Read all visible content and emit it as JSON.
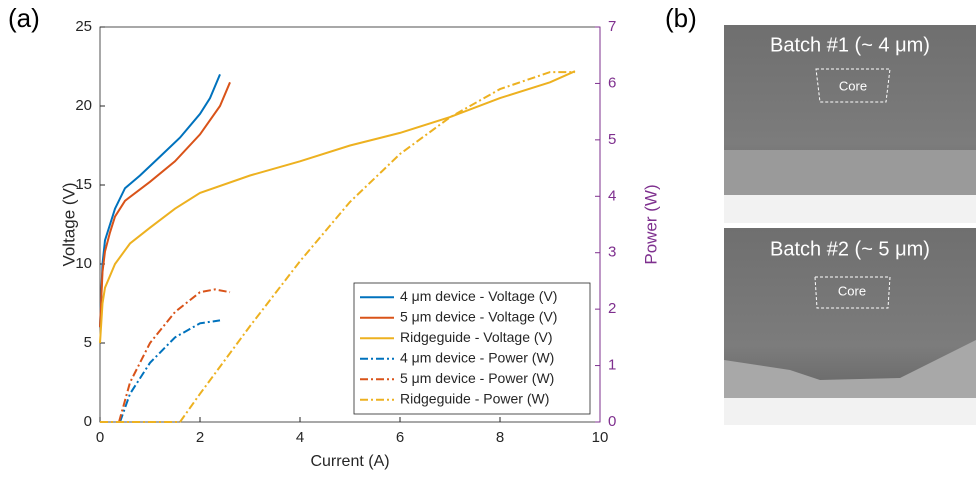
{
  "panel_labels": [
    "(a)",
    "(b)"
  ],
  "chart_data": {
    "type": "line",
    "xlabel": "Current (A)",
    "ylabel": "Voltage (V)",
    "y2label": "Power (W)",
    "xlim": [
      0,
      10
    ],
    "xticks": [
      0,
      2,
      4,
      6,
      8,
      10
    ],
    "ylim": [
      0,
      25
    ],
    "yticks": [
      0,
      5,
      10,
      15,
      20,
      25
    ],
    "y2lim": [
      0,
      7
    ],
    "y2ticks": [
      0,
      1,
      2,
      3,
      4,
      5,
      6,
      7
    ],
    "y2color": "#7e2f8e",
    "legend": "lower right",
    "series": [
      {
        "name": "4 μm device - Voltage (V)",
        "color": "#0072bd",
        "style": "solid",
        "x": [
          0,
          0.05,
          0.1,
          0.2,
          0.3,
          0.5,
          0.8,
          1.2,
          1.6,
          2.0,
          2.2,
          2.4
        ],
        "values": [
          6,
          10,
          11.5,
          12.5,
          13.5,
          14.8,
          15.6,
          16.8,
          18,
          19.5,
          20.5,
          22
        ]
      },
      {
        "name": "5 μm device - Voltage (V)",
        "color": "#d95319",
        "style": "solid",
        "x": [
          0,
          0.05,
          0.1,
          0.2,
          0.3,
          0.5,
          1,
          1.5,
          2,
          2.4,
          2.6
        ],
        "values": [
          6,
          9.5,
          10.8,
          12,
          13,
          14,
          15.2,
          16.5,
          18.2,
          20,
          21.5
        ]
      },
      {
        "name": "Ridgeguide - Voltage (V)",
        "color": "#edb120",
        "style": "solid",
        "x": [
          0,
          0.05,
          0.1,
          0.3,
          0.6,
          1,
          1.5,
          2,
          3,
          4,
          5,
          6,
          7,
          8,
          9,
          9.5
        ],
        "values": [
          5,
          7.5,
          8.5,
          10,
          11.3,
          12.3,
          13.5,
          14.5,
          15.6,
          16.5,
          17.5,
          18.3,
          19.3,
          20.5,
          21.5,
          22.2
        ]
      },
      {
        "name": "4 μm device - Power (W)",
        "color": "#0072bd",
        "style": "dashdot",
        "axis": "y2",
        "x": [
          0.4,
          0.6,
          1,
          1.5,
          2,
          2.4
        ],
        "values": [
          0,
          0.5,
          1.05,
          1.5,
          1.75,
          1.8
        ]
      },
      {
        "name": "5 μm device - Power (W)",
        "color": "#d95319",
        "style": "dashdot",
        "axis": "y2",
        "x": [
          0.38,
          0.6,
          1,
          1.5,
          2,
          2.3,
          2.6
        ],
        "values": [
          0,
          0.7,
          1.4,
          1.95,
          2.3,
          2.35,
          2.3
        ]
      },
      {
        "name": "Ridgeguide - Power (W)",
        "color": "#edb120",
        "style": "dashdot",
        "axis": "y2",
        "x": [
          0,
          1.6,
          2,
          3,
          4,
          5,
          6,
          7,
          8,
          9,
          9.5
        ],
        "values": [
          0,
          0,
          0.5,
          1.7,
          2.85,
          3.9,
          4.75,
          5.4,
          5.9,
          6.2,
          6.2
        ]
      }
    ]
  },
  "images": [
    {
      "label": "Batch #1 (~ 4 μm)",
      "core": "Core"
    },
    {
      "label": "Batch #2 (~ 5 μm)",
      "core": "Core"
    }
  ]
}
